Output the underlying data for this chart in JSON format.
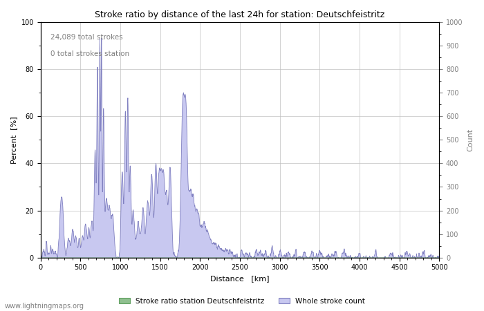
{
  "title": "Stroke ratio by distance of the last 24h for station: Deutschfeistritz",
  "xlabel": "Distance   [km]",
  "ylabel": "Percent  [%]",
  "ylabel_right": "Count",
  "annotation_line1": "24,089 total strokes",
  "annotation_line2": "0 total strokes station",
  "xlim": [
    0,
    5000
  ],
  "ylim": [
    0,
    100
  ],
  "ylim_right": [
    0,
    1000
  ],
  "xticks": [
    0,
    500,
    1000,
    1500,
    2000,
    2500,
    3000,
    3500,
    4000,
    4500,
    5000
  ],
  "yticks_left": [
    0,
    20,
    40,
    60,
    80,
    100
  ],
  "yticks_right": [
    0,
    100,
    200,
    300,
    400,
    500,
    600,
    700,
    800,
    900,
    1000
  ],
  "fill_color_green": "#90c090",
  "fill_color_blue": "#c8c8f0",
  "line_color": "#8080c0",
  "background_color": "#ffffff",
  "grid_color": "#c0c0c0",
  "legend_label1": "Stroke ratio station Deutschfeistritz",
  "legend_label2": "Whole stroke count",
  "watermark": "www.lightningmaps.org"
}
